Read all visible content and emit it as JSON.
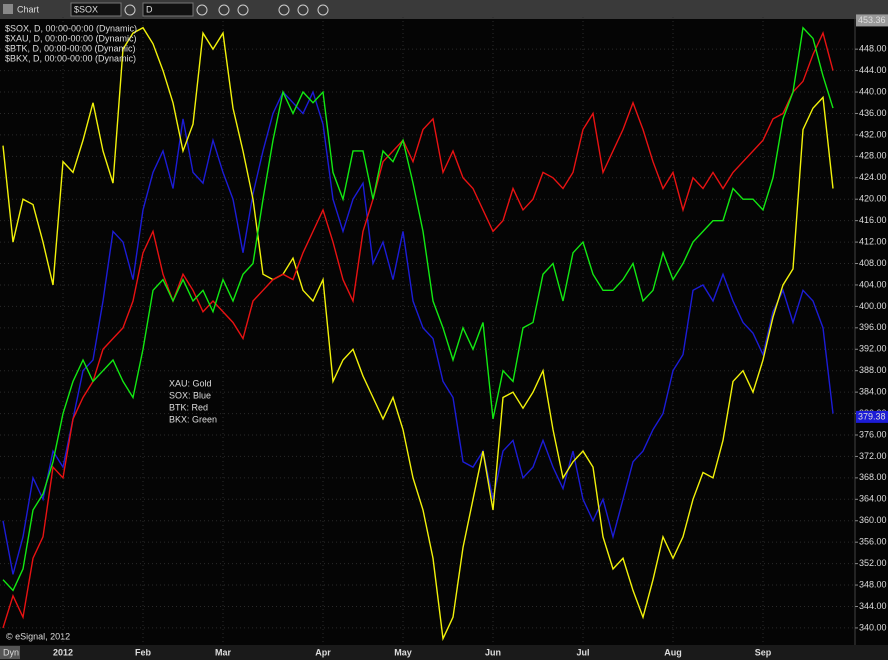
{
  "toolbar": {
    "title": "Chart",
    "symbol": "$SOX",
    "interval": "D"
  },
  "chart_data": {
    "type": "line",
    "categories": [
      null,
      null,
      null,
      null,
      null,
      null,
      "2012",
      null,
      null,
      null,
      null,
      null,
      null,
      null,
      "Feb",
      null,
      null,
      null,
      null,
      null,
      null,
      null,
      "Mar",
      null,
      null,
      null,
      null,
      null,
      null,
      null,
      null,
      null,
      "Apr",
      null,
      null,
      null,
      null,
      null,
      null,
      null,
      "May",
      null,
      null,
      null,
      null,
      null,
      null,
      null,
      null,
      "Jun",
      null,
      null,
      null,
      null,
      null,
      null,
      null,
      null,
      "Jul",
      null,
      null,
      null,
      null,
      null,
      null,
      null,
      null,
      "Aug",
      null,
      null,
      null,
      null,
      null,
      null,
      null,
      null,
      "Sep",
      null,
      null,
      null,
      null,
      null,
      null,
      null
    ],
    "series": [
      {
        "name": "$SOX, D, 00:00-00:00 (Dynamic)",
        "color": "#1c1cd6",
        "values": [
          360,
          350,
          357,
          368,
          364,
          373,
          370,
          379,
          388,
          390,
          401,
          414,
          412,
          405,
          418,
          425,
          429,
          422,
          435,
          425,
          423,
          431,
          425,
          420,
          410,
          421,
          429,
          436,
          440,
          438,
          436,
          440,
          434,
          420,
          414,
          420,
          423,
          408,
          412,
          405,
          414,
          401,
          396,
          394,
          386,
          383,
          371,
          370,
          373,
          364,
          373,
          375,
          368,
          370,
          375,
          370,
          366,
          373,
          364,
          360,
          364,
          357,
          364,
          371,
          373,
          377,
          380,
          388,
          391,
          403,
          404,
          401,
          406,
          401,
          397,
          395,
          391,
          399,
          403,
          397,
          403,
          401,
          396,
          380
        ]
      },
      {
        "name": "$XAU, D, 00:00-00:00 (Dynamic)",
        "color": "#f2f20a",
        "values": [
          430,
          412,
          420,
          419,
          412,
          404,
          427,
          425,
          431,
          438,
          429,
          423,
          448,
          451,
          452,
          449,
          444,
          438,
          429,
          434,
          451,
          448,
          451,
          437,
          429,
          420,
          406,
          405,
          406,
          409,
          403,
          401,
          405,
          386,
          390,
          392,
          387,
          383,
          379,
          383,
          377,
          368,
          362,
          353,
          338,
          342,
          355,
          364,
          373,
          362,
          383,
          384,
          381,
          384,
          388,
          377,
          368,
          371,
          373,
          370,
          357,
          351,
          353,
          347,
          342,
          349,
          357,
          353,
          357,
          364,
          369,
          368,
          375,
          386,
          388,
          384,
          390,
          398,
          404,
          407,
          433,
          437,
          439,
          422
        ]
      },
      {
        "name": "$BTK, D, 00:00-00:00 (Dynamic)",
        "color": "#e81212",
        "values": [
          340,
          346,
          342,
          353,
          357,
          370,
          368,
          379,
          383,
          386,
          392,
          394,
          396,
          401,
          410,
          414,
          406,
          401,
          406,
          403,
          399,
          401,
          399,
          397,
          394,
          401,
          403,
          405,
          406,
          405,
          410,
          414,
          418,
          412,
          405,
          401,
          414,
          420,
          427,
          429,
          431,
          427,
          433,
          435,
          425,
          429,
          424,
          422,
          418,
          414,
          416,
          422,
          418,
          420,
          425,
          424,
          422,
          425,
          433,
          436,
          425,
          429,
          433,
          438,
          433,
          427,
          422,
          425,
          418,
          424,
          422,
          425,
          422,
          425,
          427,
          429,
          431,
          435,
          436,
          440,
          442,
          447,
          451,
          444
        ]
      },
      {
        "name": "$BKX, D, 00:00-00:00 (Dynamic)",
        "color": "#12e812",
        "values": [
          349,
          347,
          351,
          362,
          365,
          371,
          380,
          386,
          390,
          386,
          388,
          390,
          386,
          383,
          392,
          403,
          405,
          401,
          405,
          401,
          403,
          399,
          405,
          401,
          406,
          408,
          420,
          431,
          440,
          436,
          440,
          438,
          440,
          425,
          420,
          429,
          429,
          420,
          429,
          427,
          431,
          423,
          414,
          401,
          396,
          390,
          396,
          392,
          397,
          379,
          388,
          386,
          396,
          397,
          406,
          408,
          401,
          410,
          412,
          406,
          403,
          403,
          405,
          408,
          401,
          403,
          410,
          405,
          408,
          412,
          414,
          416,
          416,
          422,
          420,
          420,
          418,
          424,
          435,
          440,
          452,
          450,
          443,
          437
        ]
      }
    ],
    "ylim": [
      337,
      454
    ],
    "yticks": [
      {
        "value": 340,
        "label": "340.00"
      },
      {
        "value": 344,
        "label": "344.00"
      },
      {
        "value": 348,
        "label": "348.00"
      },
      {
        "value": 352,
        "label": "352.00"
      },
      {
        "value": 356,
        "label": "356.00"
      },
      {
        "value": 360,
        "label": "360.00"
      },
      {
        "value": 364,
        "label": "364.00"
      },
      {
        "value": 368,
        "label": "368.00"
      },
      {
        "value": 372,
        "label": "372.00"
      },
      {
        "value": 376,
        "label": "376.00"
      },
      {
        "value": 380,
        "label": "380.00"
      },
      {
        "value": 384,
        "label": "384.00"
      },
      {
        "value": 388,
        "label": "388.00"
      },
      {
        "value": 392,
        "label": "392.00"
      },
      {
        "value": 396,
        "label": "396.00"
      },
      {
        "value": 400,
        "label": "400.00"
      },
      {
        "value": 404,
        "label": "404.00"
      },
      {
        "value": 408,
        "label": "408.00"
      },
      {
        "value": 412,
        "label": "412.00"
      },
      {
        "value": 416,
        "label": "416.00"
      },
      {
        "value": 420,
        "label": "420.00"
      },
      {
        "value": 424,
        "label": "424.00"
      },
      {
        "value": 428,
        "label": "428.00"
      },
      {
        "value": 432,
        "label": "432.00"
      },
      {
        "value": 436,
        "label": "436.00"
      },
      {
        "value": 440,
        "label": "440.00"
      },
      {
        "value": 444,
        "label": "444.00"
      },
      {
        "value": 448,
        "label": "448.00"
      }
    ],
    "price_labels": [
      {
        "value": 453.36,
        "label": "453.36",
        "color": "#9a9a9a"
      },
      {
        "value": 379.38,
        "label": "379.38",
        "color": "#1c1cd6"
      }
    ],
    "annotations": [
      "XAU:  Gold",
      "SOX:  Blue",
      "BTK:  Red",
      "BKX:  Green"
    ],
    "watermark": "© eSignal, 2012",
    "corner_label": "Dyn",
    "grid": true
  }
}
